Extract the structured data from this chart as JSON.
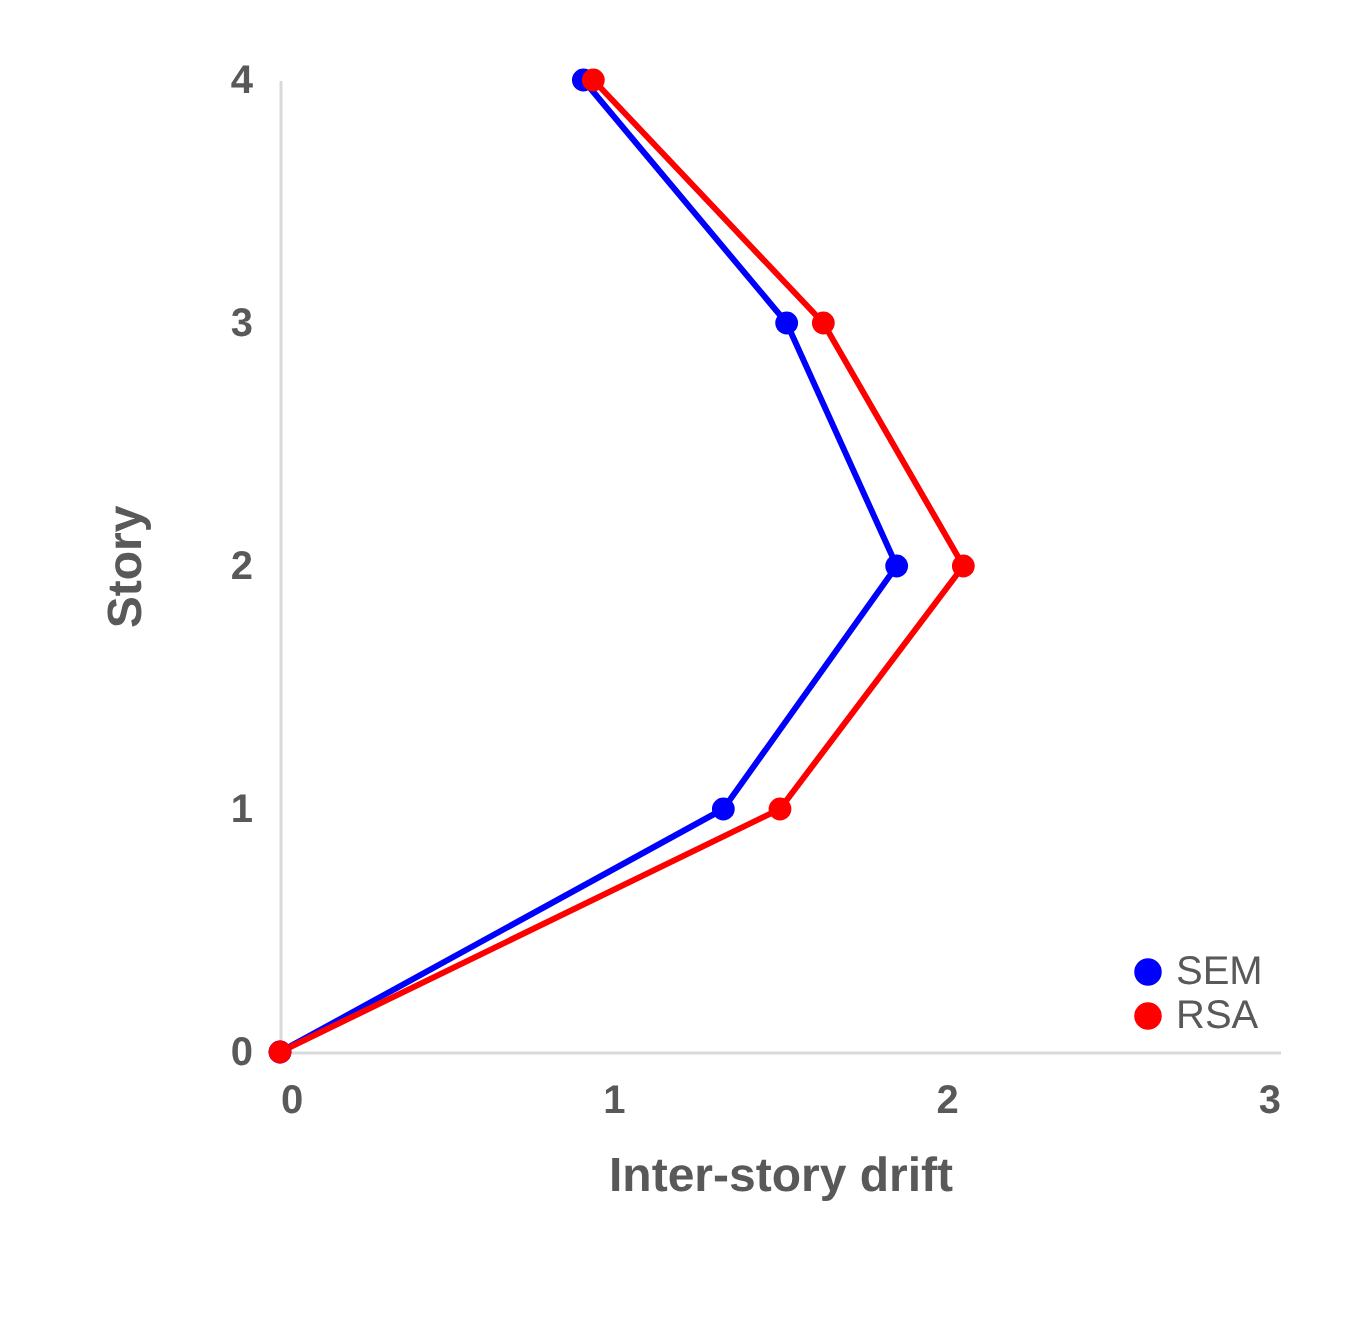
{
  "chart_data": {
    "type": "line",
    "xlabel": "Inter-story drift",
    "ylabel": "Story",
    "series": [
      {
        "name": "SEM",
        "color": "#0000ff",
        "x": [
          0,
          1.33,
          1.85,
          1.52,
          0.91
        ],
        "values": [
          0,
          1,
          2,
          3,
          4
        ]
      },
      {
        "name": "RSA",
        "color": "#ff0000",
        "x": [
          0,
          1.5,
          2.05,
          1.63,
          0.94
        ],
        "values": [
          0,
          1,
          2,
          3,
          4
        ]
      }
    ],
    "xlim": [
      0,
      3
    ],
    "xticks": [
      0,
      1,
      2,
      3
    ],
    "ylim": [
      0,
      4
    ],
    "yticks": [
      0,
      1,
      2,
      3,
      4
    ],
    "grid": false,
    "legend": "bottom right",
    "marker": "circle",
    "line_style": "solid"
  }
}
